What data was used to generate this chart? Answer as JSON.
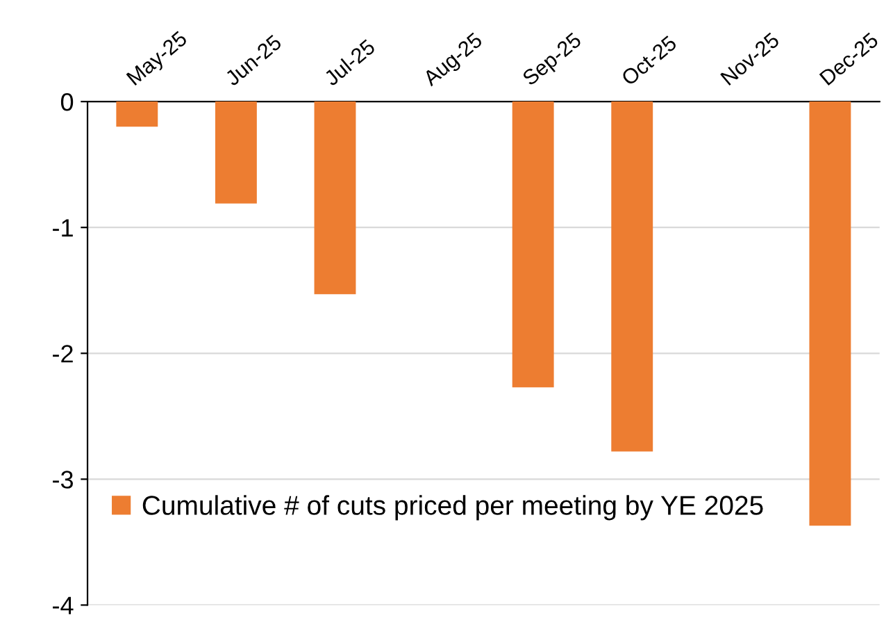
{
  "chart_data": {
    "type": "bar",
    "categories": [
      "May-25",
      "Jun-25",
      "Jul-25",
      "Aug-25",
      "Sep-25",
      "Oct-25",
      "Nov-25",
      "Dec-25"
    ],
    "series": [
      {
        "name": "Cumulative # of cuts priced per meeting by YE 2025",
        "color": "#ed7d31",
        "values": [
          -0.2,
          -0.81,
          -1.53,
          null,
          -2.27,
          -2.78,
          null,
          -3.37
        ]
      }
    ],
    "ylim": [
      -4,
      0
    ],
    "yticks": [
      -4,
      -3,
      -2,
      -1,
      0
    ],
    "grid": "y",
    "legend": "bottom left"
  }
}
